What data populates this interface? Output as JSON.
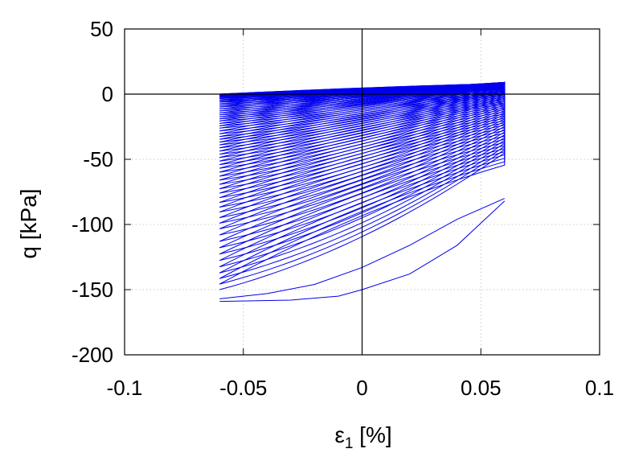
{
  "chart_data": {
    "type": "line",
    "title": "",
    "xlabel_base": "ε",
    "xlabel_sub": "1",
    "xlabel_unit": " [%]",
    "ylabel": "q [kPa]",
    "xlim": [
      -0.1,
      0.1
    ],
    "ylim": [
      -200,
      50
    ],
    "xticks": [
      -0.1,
      -0.05,
      0,
      0.05,
      0.1
    ],
    "yticks": [
      -200,
      -150,
      -100,
      -50,
      0,
      50
    ],
    "xtick_labels": [
      "-0.1",
      "-0.05",
      "0",
      "0.05",
      "0.1"
    ],
    "ytick_labels": [
      "-200",
      "-150",
      "-100",
      "-50",
      "0",
      "50"
    ],
    "grid": true,
    "zero_lines": true,
    "series_color": "#0000ee",
    "strain_amplitude": 0.06,
    "cycles": 60,
    "first_loading": [
      [
        0.06,
        -80
      ],
      [
        0.04,
        -96
      ],
      [
        0.02,
        -116
      ],
      [
        0.0,
        -133
      ],
      [
        -0.02,
        -146
      ],
      [
        -0.04,
        -153
      ],
      [
        -0.06,
        -157
      ]
    ],
    "first_unloading": [
      [
        -0.06,
        -159
      ],
      [
        -0.03,
        -158
      ],
      [
        -0.01,
        -155
      ],
      [
        0.0,
        -150
      ],
      [
        0.02,
        -138
      ],
      [
        0.04,
        -116
      ],
      [
        0.06,
        -82
      ]
    ],
    "series": [
      {
        "x": [
          -0.06,
          -0.03,
          0.0,
          0.03,
          0.06
        ],
        "bottom_at_left": [
          -150,
          -136,
          -120,
          -104,
          -90,
          -78,
          -67,
          -57,
          -48,
          -40,
          -33,
          -26,
          -20,
          -15,
          -10,
          -6,
          -3,
          -1,
          0
        ],
        "top_at_right": [
          -45,
          -37,
          -30,
          -23,
          -17,
          -12,
          -7,
          -3,
          0,
          3,
          5,
          7,
          8,
          9,
          9,
          9,
          9,
          9,
          9
        ]
      }
    ]
  }
}
